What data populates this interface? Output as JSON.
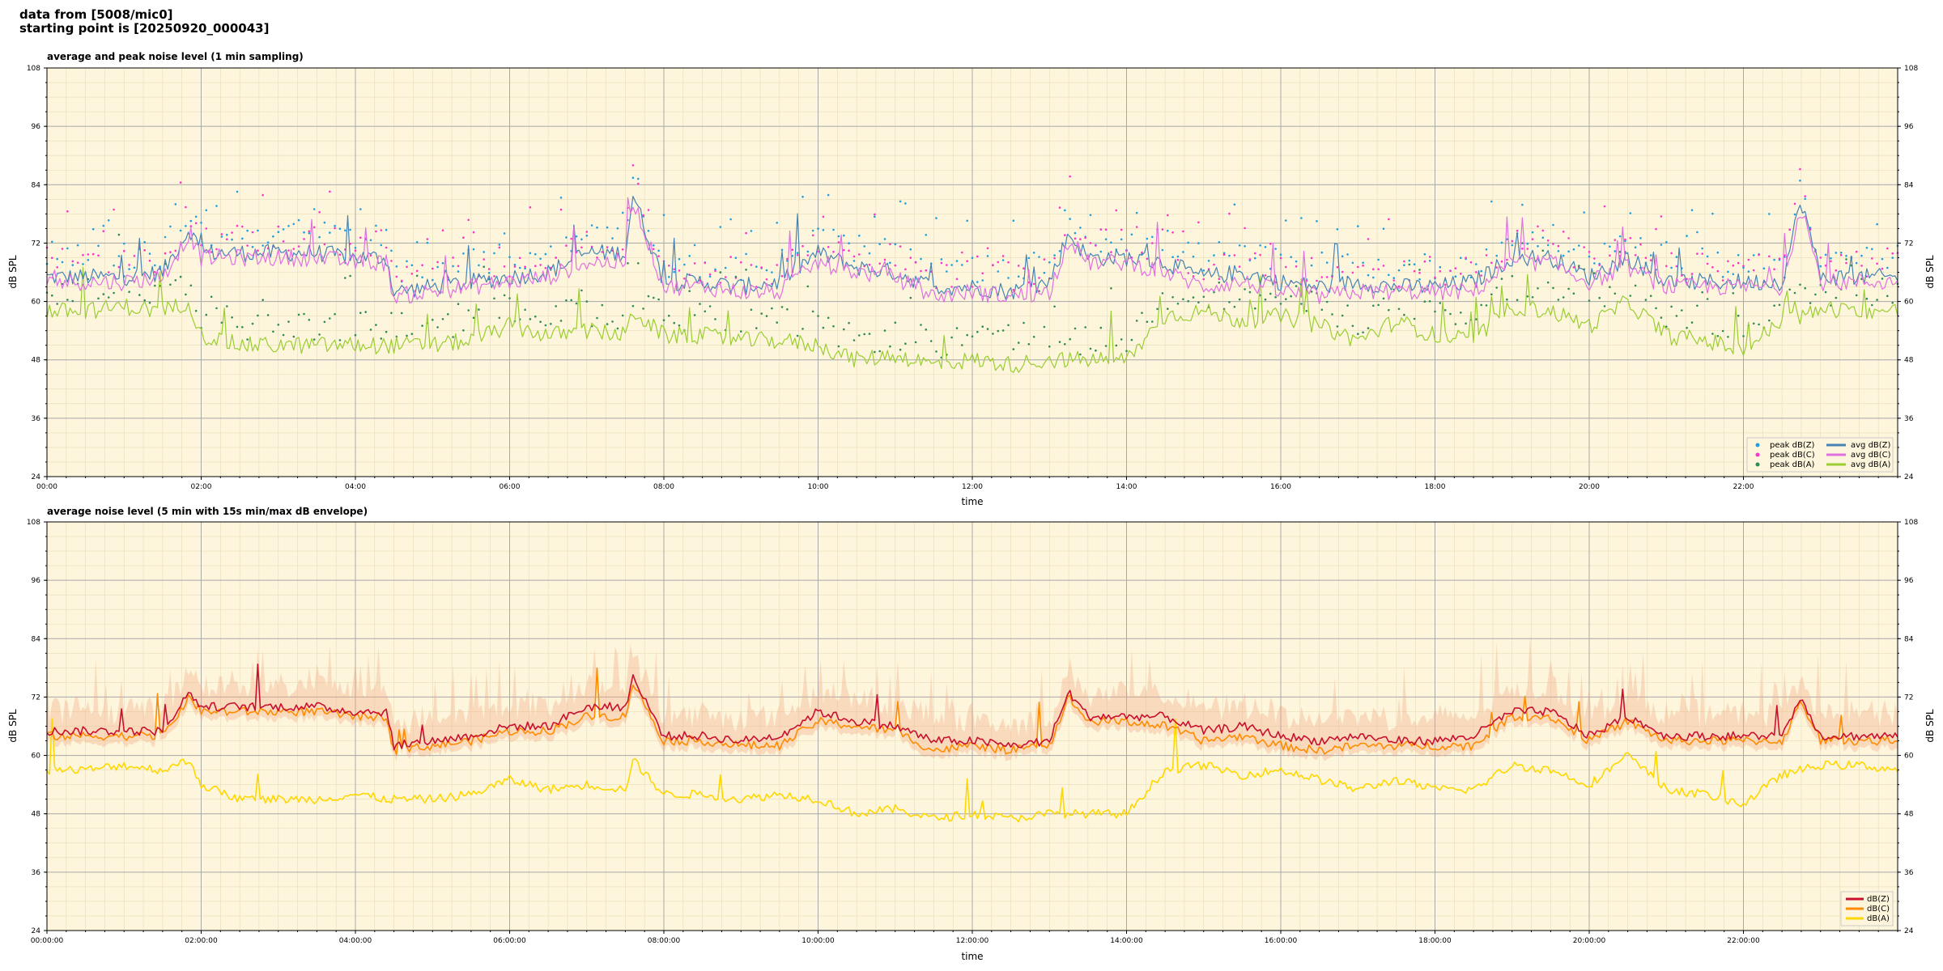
{
  "header": {
    "line1": "data from [5008/mic0]",
    "line2": "starting point is [20250920_000043]"
  },
  "colors": {
    "plot_bg": "#fdf6dc",
    "peak_z": "#1f9fdf",
    "peak_c": "#ff33cc",
    "peak_a": "#2e8b57",
    "avg_z": "#4682b4",
    "avg_c": "#e070e0",
    "avg_a": "#9acd32",
    "env_z": "#c8102e",
    "env_c": "#ff8c00",
    "env_a": "#ffd700",
    "envelope_fill": "#f4a582"
  },
  "chart_data": [
    {
      "type": "line",
      "title": "average and peak noise level (1 min sampling)",
      "xlabel": "time",
      "ylabel": "dB SPL",
      "ylim": [
        24,
        108
      ],
      "xlim_hours": [
        0,
        24
      ],
      "y_ticks": [
        24,
        36,
        48,
        60,
        72,
        84,
        96,
        108
      ],
      "x_tick_labels": [
        "00:00",
        "02:00",
        "04:00",
        "06:00",
        "08:00",
        "10:00",
        "12:00",
        "14:00",
        "16:00",
        "18:00",
        "20:00",
        "22:00"
      ],
      "grid": true,
      "legend": "bottom-right",
      "legend_entries": [
        "peak dB(Z)",
        "peak dB(C)",
        "peak dB(A)",
        "avg dB(Z)",
        "avg dB(C)",
        "avg dB(A)"
      ],
      "series": [
        {
          "name": "avg dB(Z)",
          "x_hours": [
            0,
            0.5,
            1,
            1.5,
            1.85,
            2,
            2.5,
            3,
            3.5,
            4,
            4.4,
            4.5,
            5,
            5.5,
            6,
            6.5,
            7,
            7.5,
            7.6,
            8,
            8.5,
            9,
            9.5,
            10,
            10.5,
            11,
            11.5,
            12,
            12.5,
            13,
            13.25,
            13.5,
            14,
            14.5,
            15,
            15.5,
            16,
            16.5,
            17,
            17.5,
            18,
            18.5,
            19,
            19.5,
            20,
            20.5,
            21,
            21.5,
            22,
            22.5,
            22.75,
            23,
            23.5,
            24
          ],
          "y": [
            65,
            65,
            65,
            66,
            75,
            70,
            70,
            70,
            70,
            69,
            69,
            62,
            63,
            64,
            65,
            66,
            70,
            70,
            82,
            64,
            64,
            63,
            64,
            70,
            67,
            66,
            63,
            63,
            62,
            64,
            74,
            69,
            69,
            68,
            65,
            66,
            64,
            63,
            64,
            63,
            63,
            64,
            69,
            69,
            65,
            69,
            64,
            64,
            64,
            64,
            81,
            65,
            65,
            65
          ]
        },
        {
          "name": "avg dB(C)",
          "x_hours": [
            0,
            0.5,
            1,
            1.5,
            1.85,
            2,
            2.5,
            3,
            3.5,
            4,
            4.4,
            4.5,
            5,
            5.5,
            6,
            6.5,
            7,
            7.5,
            7.6,
            8,
            8.5,
            9,
            9.5,
            10,
            10.5,
            11,
            11.5,
            12,
            12.5,
            13,
            13.25,
            13.5,
            14,
            14.5,
            15,
            15.5,
            16,
            16.5,
            17,
            17.5,
            18,
            18.5,
            19,
            19.5,
            20,
            20.5,
            21,
            21.5,
            22,
            22.5,
            22.75,
            23,
            23.5,
            24
          ],
          "y": [
            64,
            64,
            64,
            65,
            74,
            69,
            69,
            69,
            69,
            68,
            68,
            61,
            62,
            63,
            64,
            65,
            68,
            68,
            81,
            63,
            63,
            62,
            62,
            68,
            66,
            65,
            61,
            62,
            61,
            62,
            73,
            68,
            68,
            66,
            63,
            64,
            62,
            61,
            62,
            62,
            62,
            62,
            68,
            68,
            64,
            67,
            63,
            63,
            63,
            63,
            80,
            64,
            64,
            64
          ]
        },
        {
          "name": "avg dB(A)",
          "x_hours": [
            0,
            0.5,
            1,
            1.5,
            1.85,
            2,
            2.5,
            3,
            3.5,
            4,
            4.4,
            4.5,
            5,
            5.5,
            6,
            6.5,
            7,
            7.5,
            7.6,
            8,
            8.5,
            9,
            9.5,
            10,
            10.5,
            11,
            11.5,
            12,
            12.5,
            13,
            13.25,
            13.5,
            14,
            14.5,
            15,
            15.5,
            16,
            16.5,
            17,
            17.5,
            18,
            18.5,
            19,
            19.5,
            20,
            20.5,
            21,
            21.5,
            22,
            22.5,
            22.75,
            23,
            23.5,
            24
          ],
          "y": [
            58,
            58,
            59,
            58,
            60,
            53,
            51,
            51,
            51,
            51,
            51,
            51,
            51,
            52,
            55,
            53,
            54,
            53,
            58,
            53,
            53,
            52,
            52,
            51,
            48,
            49,
            47,
            48,
            47,
            48,
            48,
            48,
            48,
            57,
            58,
            56,
            57,
            55,
            52,
            56,
            53,
            52,
            59,
            58,
            55,
            60,
            53,
            52,
            50,
            56,
            57,
            58,
            58,
            58
          ]
        }
      ]
    },
    {
      "type": "line",
      "title": "average noise level (5 min with 15s min/max dB envelope)",
      "xlabel": "time",
      "ylabel": "dB SPL",
      "ylim": [
        24,
        108
      ],
      "xlim_hours": [
        0,
        24
      ],
      "y_ticks": [
        24,
        36,
        48,
        60,
        72,
        84,
        96,
        108
      ],
      "x_tick_labels": [
        "00:00:00",
        "02:00:00",
        "04:00:00",
        "06:00:00",
        "08:00:00",
        "10:00:00",
        "12:00:00",
        "14:00:00",
        "16:00:00",
        "18:00:00",
        "20:00:00",
        "22:00:00"
      ],
      "grid": true,
      "legend": "bottom-right",
      "legend_entries": [
        "dB(Z)",
        "dB(C)",
        "dB(A)"
      ],
      "series": [
        {
          "name": "dB(Z)",
          "x_hours": [
            0,
            0.5,
            1,
            1.5,
            1.85,
            2,
            2.5,
            3,
            3.5,
            4,
            4.4,
            4.5,
            5,
            5.5,
            6,
            6.5,
            7,
            7.5,
            7.6,
            8,
            8.5,
            9,
            9.5,
            10,
            10.5,
            11,
            11.5,
            12,
            12.5,
            13,
            13.25,
            13.5,
            14,
            14.5,
            15,
            15.5,
            16,
            16.5,
            17,
            17.5,
            18,
            18.5,
            19,
            19.5,
            20,
            20.5,
            21,
            21.5,
            22,
            22.5,
            22.75,
            23,
            23.5,
            24
          ],
          "y": [
            65,
            65,
            65,
            65,
            73,
            70,
            70,
            70,
            70,
            69,
            69,
            62,
            63,
            64,
            66,
            66,
            70,
            70,
            76,
            64,
            64,
            63,
            64,
            69,
            67,
            66,
            63,
            63,
            62,
            63,
            73,
            68,
            68,
            68,
            65,
            66,
            64,
            63,
            64,
            63,
            63,
            64,
            69,
            69,
            64,
            68,
            64,
            64,
            64,
            64,
            72,
            64,
            64,
            64
          ]
        },
        {
          "name": "dB(C)",
          "x_hours": [
            0,
            0.5,
            1,
            1.5,
            1.85,
            2,
            2.5,
            3,
            3.5,
            4,
            4.4,
            4.5,
            5,
            5.5,
            6,
            6.5,
            7,
            7.5,
            7.6,
            8,
            8.5,
            9,
            9.5,
            10,
            10.5,
            11,
            11.5,
            12,
            12.5,
            13,
            13.25,
            13.5,
            14,
            14.5,
            15,
            15.5,
            16,
            16.5,
            17,
            17.5,
            18,
            18.5,
            19,
            19.5,
            20,
            20.5,
            21,
            21.5,
            22,
            22.5,
            22.75,
            23,
            23.5,
            24
          ],
          "y": [
            64,
            64,
            64,
            64,
            72,
            69,
            69,
            69,
            69,
            68,
            68,
            61,
            62,
            63,
            65,
            65,
            68,
            68,
            75,
            63,
            63,
            62,
            62,
            67,
            66,
            65,
            61,
            62,
            61,
            62,
            72,
            67,
            67,
            66,
            63,
            64,
            62,
            61,
            62,
            62,
            62,
            62,
            68,
            68,
            63,
            67,
            63,
            63,
            63,
            63,
            71,
            63,
            63,
            63
          ]
        },
        {
          "name": "dB(A)",
          "x_hours": [
            0,
            0.5,
            1,
            1.5,
            1.85,
            2,
            2.5,
            3,
            3.5,
            4,
            4.4,
            4.5,
            5,
            5.5,
            6,
            6.5,
            7,
            7.5,
            7.6,
            8,
            8.5,
            9,
            9.5,
            10,
            10.5,
            11,
            11.5,
            12,
            12.5,
            13,
            13.25,
            13.5,
            14,
            14.5,
            15,
            15.5,
            16,
            16.5,
            17,
            17.5,
            18,
            18.5,
            19,
            19.5,
            20,
            20.5,
            21,
            21.5,
            22,
            22.5,
            22.75,
            23,
            23.5,
            24
          ],
          "y": [
            57,
            57,
            58,
            57,
            59,
            54,
            51,
            51,
            51,
            52,
            51,
            51,
            51,
            52,
            55,
            53,
            54,
            53,
            59,
            52,
            52,
            51,
            52,
            51,
            48,
            49,
            47,
            48,
            47,
            48,
            48,
            48,
            48,
            57,
            58,
            56,
            57,
            55,
            53,
            55,
            53,
            53,
            58,
            57,
            54,
            60,
            53,
            52,
            50,
            56,
            57,
            58,
            58,
            57
          ]
        }
      ]
    }
  ]
}
